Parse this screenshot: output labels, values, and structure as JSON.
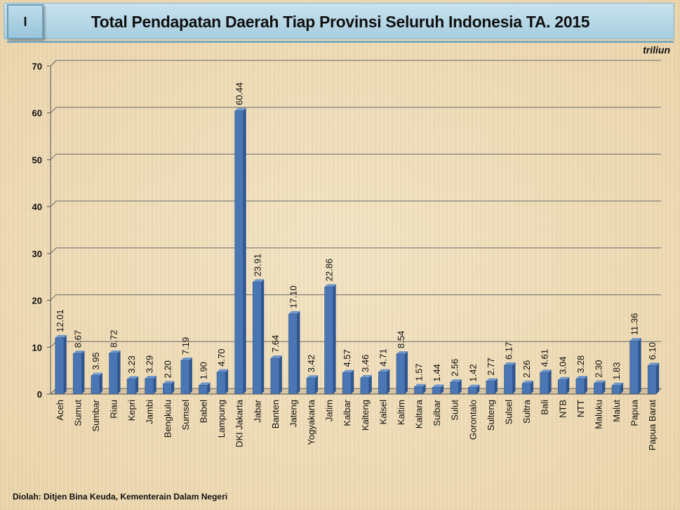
{
  "header": {
    "badge": "I",
    "title": "Total Pendapatan Daerah Tiap Provinsi Seluruh Indonesia TA. 2015",
    "unit": "triliun"
  },
  "footer": {
    "source": "Diolah: Ditjen Bina Keuda, Kementerain Dalam Negeri"
  },
  "colors": {
    "bar": "#4a77b4",
    "bar_dark": "#2f5590",
    "grid": "#6b6b6b"
  },
  "chart_data": {
    "type": "bar",
    "title": "Total Pendapatan Daerah Tiap Provinsi Seluruh Indonesia TA. 2015",
    "xlabel": "",
    "ylabel": "",
    "ylim": [
      0,
      70
    ],
    "yticks": [
      0,
      10,
      20,
      30,
      40,
      50,
      60,
      70
    ],
    "grid": true,
    "categories": [
      "Aceh",
      "Sumut",
      "Sumbar",
      "Riau",
      "Kepri",
      "Jambi",
      "Bengkulu",
      "Sumsel",
      "Babel",
      "Lampung",
      "DKI Jakarta",
      "Jabar",
      "Banten",
      "Jateng",
      "Yogyakarta",
      "Jatim",
      "Kalbar",
      "Kalteng",
      "Kalsel",
      "Kaltim",
      "Kaltara",
      "Sulbar",
      "Sulut",
      "Gorontalo",
      "Sulteng",
      "Sulsel",
      "Sultra",
      "Bali",
      "NTB",
      "NTT",
      "Maluku",
      "Malut",
      "Papua",
      "Papua Barat"
    ],
    "values": [
      12.01,
      8.67,
      3.95,
      8.72,
      3.23,
      3.29,
      2.2,
      7.19,
      1.9,
      4.7,
      60.44,
      23.91,
      7.64,
      17.1,
      3.42,
      22.86,
      4.57,
      3.46,
      4.71,
      8.54,
      1.57,
      1.44,
      2.56,
      1.42,
      2.77,
      6.17,
      2.26,
      4.61,
      3.04,
      3.28,
      2.3,
      1.83,
      11.36,
      6.1
    ],
    "labels": [
      "12.01",
      "8.67",
      "3.95",
      "8.72",
      "3.23",
      "3.29",
      "2.20",
      "7.19",
      "1.90",
      "4.70",
      "60.44",
      "23.91",
      "7.64",
      "17.10",
      "3.42",
      "22.86",
      "4.57",
      "3.46",
      "4.71",
      "8.54",
      "1.57",
      "1.44",
      "2.56",
      "1.42",
      "2.77",
      "6.17",
      "2.26",
      "4.61",
      "3.04",
      "3.28",
      "2.30",
      "1.83",
      "11.36",
      "6.10"
    ]
  }
}
